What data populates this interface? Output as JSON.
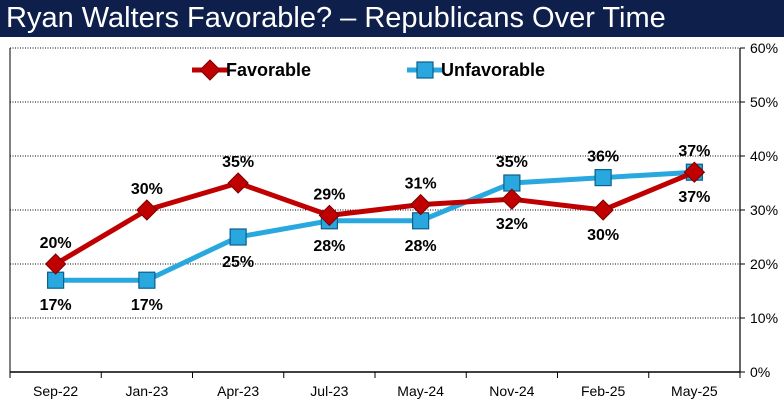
{
  "chart_data": {
    "type": "line",
    "title": "Ryan Walters Favorable? – Republicans Over Time",
    "categories": [
      "Sep-22",
      "Jan-23",
      "Apr-23",
      "Jul-23",
      "May-24",
      "Nov-24",
      "Feb-25",
      "May-25"
    ],
    "ylim": [
      0,
      60
    ],
    "yticks": [
      "0%",
      "10%",
      "20%",
      "30%",
      "40%",
      "50%",
      "60%"
    ],
    "grid": true,
    "legend": "top-center",
    "series": [
      {
        "name": "Favorable",
        "color": "#c00000",
        "marker": "diamond",
        "values": [
          20,
          30,
          35,
          29,
          31,
          32,
          30,
          37
        ],
        "labels": [
          "20%",
          "30%",
          "35%",
          "29%",
          "31%",
          "32%",
          "30%",
          "37%"
        ],
        "label_pos": [
          "above",
          "above",
          "above",
          "above",
          "above",
          "below",
          "below",
          "below"
        ]
      },
      {
        "name": "Unfavorable",
        "color": "#29a8e0",
        "marker": "square",
        "values": [
          17,
          17,
          25,
          28,
          28,
          35,
          36,
          37
        ],
        "labels": [
          "17%",
          "17%",
          "25%",
          "28%",
          "28%",
          "35%",
          "36%",
          "37%"
        ],
        "label_pos": [
          "below",
          "below",
          "below",
          "below",
          "below",
          "above",
          "above",
          "above"
        ]
      }
    ]
  }
}
